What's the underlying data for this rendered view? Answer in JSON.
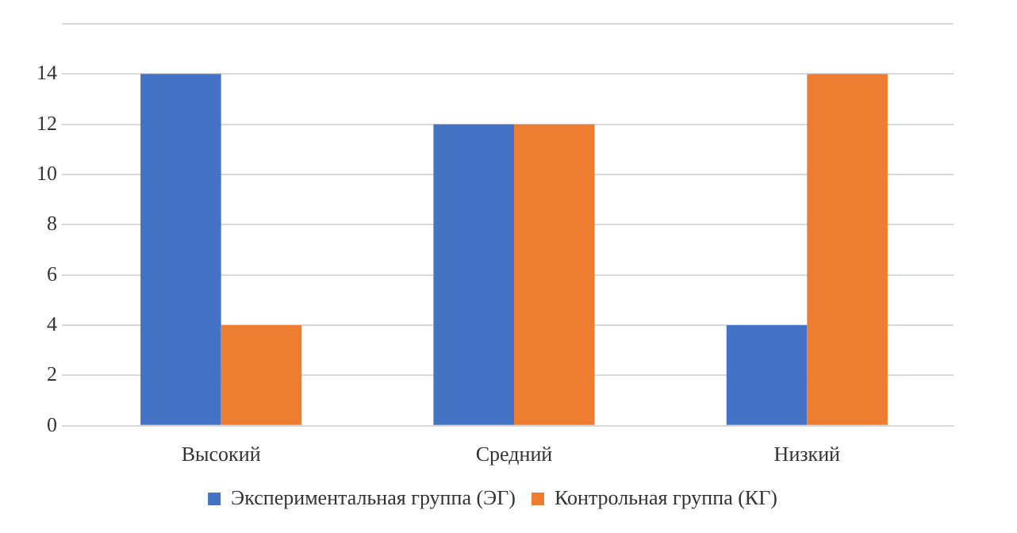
{
  "chart_data": {
    "type": "bar",
    "categories": [
      "Высокий",
      "Средний",
      "Низкий"
    ],
    "series": [
      {
        "name": "Экспериментальная группа (ЭГ)",
        "color": "#4472c4",
        "values": [
          14,
          12,
          4
        ]
      },
      {
        "name": "Контрольная группа (КГ)",
        "color": "#ed7d31",
        "values": [
          4,
          12,
          14
        ]
      }
    ],
    "ylim": [
      0,
      16
    ],
    "yticks": [
      0,
      2,
      4,
      6,
      8,
      10,
      12,
      14,
      {
        "value": 16,
        "label": null
      }
    ],
    "grid": "y",
    "legend": "bottom"
  }
}
